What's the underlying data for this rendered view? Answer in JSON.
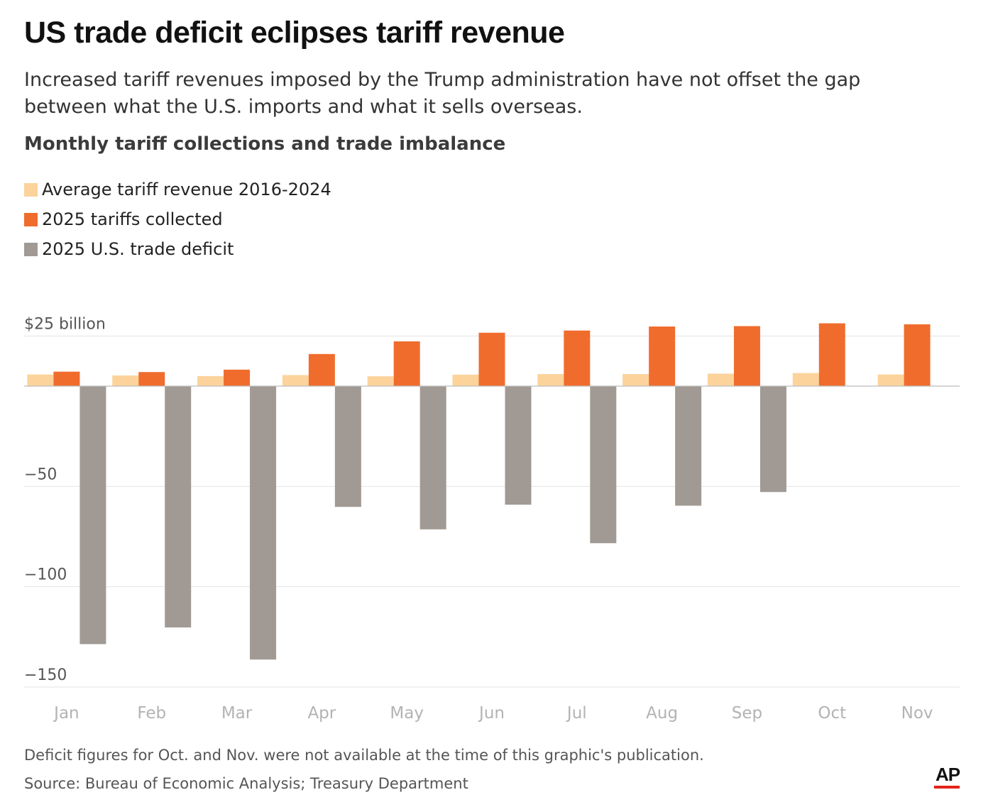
{
  "title": "US trade deficit eclipses tariff revenue",
  "subtitle": "Increased tariff revenues imposed by the Trump administration have not offset the gap between what the U.S. imports and what it sells overseas.",
  "chart_heading": "Monthly tariff collections and trade imbalance",
  "legend": [
    {
      "label": "Average tariff revenue 2016-2024",
      "color": "#fcd39b"
    },
    {
      "label": "2025 tariffs collected",
      "color": "#f06c2d"
    },
    {
      "label": "2025 U.S. trade deficit",
      "color": "#a19a94"
    }
  ],
  "footnote": "Deficit figures for Oct. and Nov. were not available at the time of this graphic's publication.",
  "source": "Source: Bureau of Economic Analysis; Treasury Department",
  "logo_text": "AP",
  "chart_data": {
    "type": "bar",
    "categories": [
      "Jan",
      "Feb",
      "Mar",
      "Apr",
      "May",
      "Jun",
      "Jul",
      "Aug",
      "Sep",
      "Oct",
      "Nov"
    ],
    "series": [
      {
        "name": "Average tariff revenue 2016-2024",
        "color": "#fcd39b",
        "values": [
          5.8,
          5.3,
          5.0,
          5.5,
          4.9,
          5.7,
          6.0,
          6.0,
          6.2,
          6.5,
          5.8
        ]
      },
      {
        "name": "2025 tariffs collected",
        "color": "#f06c2d",
        "values": [
          7.2,
          7.0,
          8.2,
          16.0,
          22.3,
          26.6,
          27.7,
          29.7,
          29.9,
          31.3,
          30.8
        ]
      },
      {
        "name": "2025 U.S. trade deficit",
        "color": "#a19a94",
        "values": [
          -128.6,
          -120.3,
          -136.3,
          -60.2,
          -71.4,
          -59.1,
          -78.3,
          -59.6,
          -52.8,
          null,
          null
        ]
      }
    ],
    "yticks": [
      25,
      -50,
      -100,
      -150
    ],
    "ytick_labels": [
      "$25 billion",
      "−50",
      "−100",
      "−150"
    ],
    "ylim": [
      -150,
      25
    ],
    "grid": true,
    "legend_position": "top-left"
  }
}
